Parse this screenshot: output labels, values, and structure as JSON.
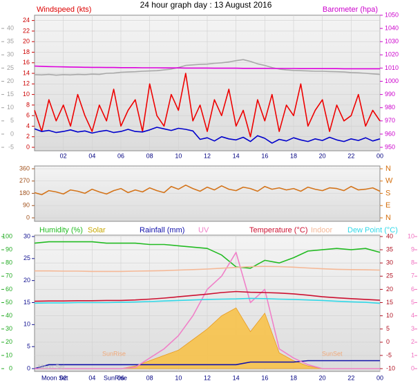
{
  "chart_data": [
    {
      "type": "line",
      "title": "24 hour graph day : 13 August 2016",
      "ylabel": "Windspeed (kts)",
      "y2label": "Barometer (hpa)",
      "grid": true,
      "x": [
        0,
        0.5,
        1,
        1.5,
        2,
        2.5,
        3,
        3.5,
        4,
        4.5,
        5,
        5.5,
        6,
        6.5,
        7,
        7.5,
        8,
        8.5,
        9,
        9.5,
        10,
        10.5,
        11,
        11.5,
        12,
        12.5,
        13,
        13.5,
        14,
        14.5,
        15,
        15.5,
        16,
        16.5,
        17,
        17.5,
        18,
        18.5,
        19,
        19.5,
        20,
        20.5,
        21,
        21.5,
        22,
        22.5,
        23,
        23.5,
        24
      ],
      "xlim": [
        0,
        24
      ],
      "xticks": [
        {
          "value": 2,
          "label": "02"
        },
        {
          "value": 4,
          "label": "04"
        },
        {
          "value": 6,
          "label": "06"
        },
        {
          "value": 8,
          "label": "08"
        },
        10,
        12,
        14,
        16,
        18,
        20,
        22,
        {
          "value": 24,
          "label": "00"
        }
      ],
      "ylim": [
        0,
        25
      ],
      "yticks": [
        0,
        2,
        4,
        6,
        8,
        10,
        12,
        14,
        16,
        18,
        20,
        22,
        24
      ],
      "y2lim": [
        950,
        1050
      ],
      "y2ticks": [
        950,
        960,
        970,
        980,
        990,
        1000,
        1010,
        1020,
        1030,
        1040,
        1050
      ],
      "y3lim": [
        -5,
        45
      ],
      "y3ticks": [
        -5,
        0,
        5,
        10,
        15,
        20,
        25,
        30,
        35,
        40
      ],
      "series": [
        {
          "color": "#a8a8a8",
          "axis": "y3",
          "values": [
            22.5,
            22.4,
            22.6,
            22.3,
            22.5,
            22.4,
            22.6,
            22.5,
            22.7,
            22.6,
            23,
            23.1,
            23.4,
            23.5,
            23.6,
            23.8,
            23.9,
            24,
            24.3,
            24.6,
            25.2,
            26,
            26.2,
            26.4,
            26.5,
            26.8,
            27,
            27.3,
            27.8,
            28.2,
            27.5,
            26.6,
            26,
            25.2,
            24.6,
            24.3,
            24.1,
            24,
            23.9,
            23.8,
            23.8,
            23.7,
            23.6,
            23.5,
            23.3,
            23.2,
            23,
            22.8,
            22.6
          ]
        },
        {
          "color": "#dd00dd",
          "axis": "y2",
          "values": [
            1011.5,
            1011.3,
            1011.1,
            1011,
            1010.9,
            1010.8,
            1010.7,
            1010.6,
            1010.5,
            1010.5,
            1010.4,
            1010.4,
            1010.3,
            1010.3,
            1010.3,
            1010.2,
            1010.2,
            1010.2,
            1010.1,
            1010.1,
            1010.1,
            1010,
            1010,
            1010,
            1010,
            1009.9,
            1009.9,
            1009.9,
            1009.9,
            1009.8,
            1009.8,
            1009.8,
            1009.8,
            1009.7,
            1009.7,
            1009.7,
            1009.7,
            1009.6,
            1009.6,
            1009.6,
            1009.6,
            1009.6,
            1009.6,
            1009.5,
            1009.5,
            1009.5,
            1009.5,
            1009.5,
            1009.5
          ]
        },
        {
          "color": "#ee0000",
          "axis": "y",
          "values": [
            7,
            3,
            9,
            5,
            8,
            4,
            10,
            6,
            3,
            8,
            5,
            11,
            4,
            7,
            9,
            3,
            12,
            6,
            4,
            10,
            7,
            14,
            5,
            8,
            3,
            9,
            6,
            11,
            4,
            7,
            2,
            9,
            5,
            10,
            3,
            8,
            6,
            12,
            4,
            7,
            9,
            3,
            8,
            5,
            6,
            10,
            4,
            7,
            5
          ]
        },
        {
          "color": "#0000cc",
          "axis": "y",
          "values": [
            3.5,
            3,
            3.2,
            2.8,
            3,
            3.3,
            2.9,
            3.1,
            2.7,
            3,
            3.2,
            2.8,
            3,
            3.4,
            3,
            2.9,
            3.3,
            3.8,
            3.5,
            3.2,
            3.6,
            3.4,
            3.1,
            1.5,
            1.8,
            1.2,
            2,
            1.6,
            1.4,
            1.9,
            1.1,
            2.2,
            1.7,
            0.8,
            1.5,
            1.2,
            1.8,
            1.4,
            1.1,
            1.6,
            1.3,
            1.9,
            1.4,
            1.1,
            1.6,
            1.3,
            1.8,
            1.2,
            1.6
          ]
        }
      ]
    },
    {
      "type": "line",
      "grid": true,
      "x": [
        0,
        0.5,
        1,
        1.5,
        2,
        2.5,
        3,
        3.5,
        4,
        4.5,
        5,
        5.5,
        6,
        6.5,
        7,
        7.5,
        8,
        8.5,
        9,
        9.5,
        10,
        10.5,
        11,
        11.5,
        12,
        12.5,
        13,
        13.5,
        14,
        14.5,
        15,
        15.5,
        16,
        16.5,
        17,
        17.5,
        18,
        18.5,
        19,
        19.5,
        20,
        20.5,
        21,
        21.5,
        22,
        22.5,
        23,
        23.5,
        24
      ],
      "xlim": [
        0,
        24
      ],
      "ylim": [
        0,
        360
      ],
      "yticks": [
        0,
        90,
        180,
        270,
        360
      ],
      "y2lim": [
        0,
        360
      ],
      "y2ticks": [
        {
          "value": 0,
          "label": "N"
        },
        {
          "value": 90,
          "label": "E"
        },
        {
          "value": 180,
          "label": "S"
        },
        {
          "value": 270,
          "label": "W"
        },
        {
          "value": 360,
          "label": "N"
        }
      ],
      "series": [
        {
          "color": "#d4741a",
          "axis": "y",
          "values": [
            185,
            170,
            200,
            190,
            175,
            205,
            195,
            180,
            210,
            190,
            175,
            200,
            215,
            185,
            205,
            190,
            220,
            200,
            185,
            230,
            210,
            240,
            215,
            195,
            225,
            205,
            235,
            210,
            200,
            225,
            215,
            195,
            230,
            210,
            220,
            205,
            215,
            195,
            225,
            210,
            200,
            220,
            215,
            200,
            230,
            205,
            210,
            220,
            195
          ]
        }
      ]
    },
    {
      "type": "line",
      "grid": true,
      "x": [
        0,
        1,
        2,
        3,
        4,
        5,
        6,
        7,
        8,
        9,
        10,
        11,
        12,
        13,
        14,
        15,
        16,
        17,
        18,
        19,
        20,
        21,
        22,
        23,
        24
      ],
      "xlim": [
        0,
        24
      ],
      "xticks": [
        {
          "value": 2,
          "label": "02"
        },
        {
          "value": 4,
          "label": "04"
        },
        {
          "value": 6,
          "label": "06"
        },
        {
          "value": 8,
          "label": "08"
        },
        10,
        12,
        14,
        16,
        18,
        20,
        22,
        {
          "value": 24,
          "label": "00"
        }
      ],
      "ylim": [
        0,
        100
      ],
      "yticks": [
        0,
        10,
        20,
        30,
        40,
        50,
        60,
        70,
        80,
        90,
        100
      ],
      "y2lim": [
        -10,
        40
      ],
      "y2ticks": [
        -10,
        -5,
        0,
        5,
        10,
        15,
        20,
        25,
        30,
        35,
        40
      ],
      "y3lim": [
        0,
        30
      ],
      "y3ticks": [
        0,
        5,
        10,
        15,
        20,
        25,
        30
      ],
      "y4lim": [
        0,
        10
      ],
      "y4ticks": [
        0,
        1,
        2,
        3,
        4,
        5,
        6,
        7,
        8,
        9,
        10
      ],
      "annotations": [
        "SunRise",
        "SunSet",
        "Moon Set",
        "Moon Set",
        "SunRise"
      ],
      "series": [
        {
          "name": "Humidity (%)",
          "color": "#22bb22",
          "axis": "y",
          "values": [
            95,
            96,
            96,
            96,
            96,
            95,
            95,
            95,
            94,
            94,
            93,
            92,
            91,
            86,
            77,
            76,
            82,
            80,
            84,
            89,
            90,
            91,
            90,
            91,
            88
          ]
        },
        {
          "name": "Solar",
          "type": "area",
          "color": "#f7c24a",
          "axis": "y",
          "values": [
            0,
            0,
            0,
            0,
            0,
            0,
            0,
            2,
            6,
            10,
            14,
            22,
            30,
            40,
            46,
            28,
            42,
            12,
            6,
            2,
            0,
            0,
            0,
            0,
            0
          ]
        },
        {
          "name": "Rainfall (mm)",
          "color": "#1010aa",
          "axis": "y3",
          "values": [
            0,
            0.9,
            0.9,
            0.9,
            0.9,
            0.9,
            0.9,
            0.9,
            0.9,
            0.9,
            0.9,
            0.9,
            0.9,
            0.9,
            0.9,
            1.5,
            1.5,
            1.5,
            1.5,
            1.8,
            1.8,
            1.8,
            1.8,
            1.8,
            1.8
          ]
        },
        {
          "name": "UV",
          "color": "#f080c8",
          "axis": "y4",
          "values": [
            0,
            0,
            0,
            0,
            0,
            0,
            0,
            0.1,
            0.8,
            1.5,
            2.5,
            4,
            6,
            7,
            8.8,
            5,
            6,
            1.5,
            0.8,
            0.3,
            0,
            0,
            0,
            0,
            0
          ]
        },
        {
          "name": "Temperature (°C)",
          "color": "#cc1030",
          "axis": "y2",
          "values": [
            15.5,
            15.6,
            15.6,
            15.7,
            15.7,
            15.8,
            15.8,
            16,
            16.3,
            16.7,
            17.2,
            17.7,
            18.2,
            18.8,
            19.2,
            18.9,
            18.8,
            18.6,
            18.3,
            17.8,
            17.2,
            16.8,
            16.5,
            16.2,
            15.9
          ]
        },
        {
          "name": "Indoor",
          "color": "#f5b896",
          "axis": "y2",
          "values": [
            27,
            27,
            26.9,
            26.9,
            26.8,
            26.8,
            26.8,
            26.9,
            27,
            27.1,
            27.3,
            27.5,
            27.7,
            28,
            28.3,
            28.6,
            28.7,
            28.6,
            28.4,
            28.1,
            27.8,
            27.6,
            27.5,
            27.4,
            27.3
          ]
        },
        {
          "name": "Dew Point (°C)",
          "color": "#30d8e8",
          "axis": "y2",
          "values": [
            14.8,
            14.9,
            14.9,
            15,
            15,
            15,
            15.1,
            15.2,
            15.4,
            15.6,
            15.8,
            16,
            16.2,
            16.3,
            16.4,
            16.6,
            16.5,
            16.3,
            16.2,
            16,
            15.8,
            15.5,
            15.3,
            15.1,
            14.7
          ]
        }
      ]
    }
  ]
}
